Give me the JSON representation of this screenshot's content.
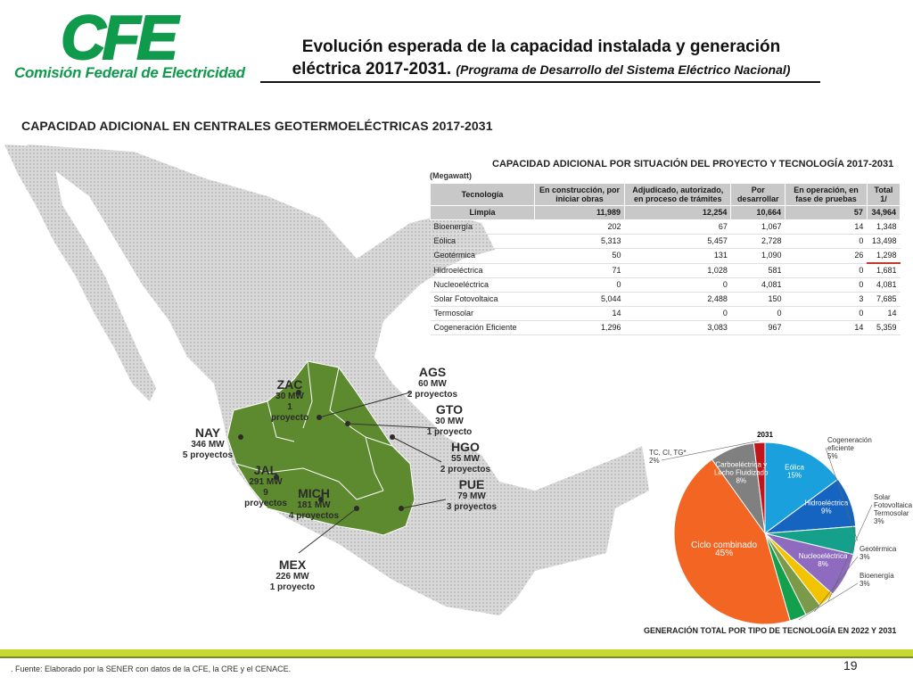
{
  "logo": {
    "cfe": "CFE",
    "subtitle": "Comisión Federal de Electricidad"
  },
  "title": {
    "line1": "Evolución esperada de la capacidad instalada y generación",
    "line2": "eléctrica 2017-2031.",
    "subtitle": "(Programa de Desarrollo del Sistema Eléctrico Nacional)"
  },
  "map": {
    "heading": "CAPACIDAD ADICIONAL EN CENTRALES GEOTERMOELÉCTRICAS 2017-2031",
    "states": [
      {
        "abbr": "ZAC",
        "mw": "30 MW",
        "projects": "1 proyecto"
      },
      {
        "abbr": "AGS",
        "mw": "60 MW",
        "projects": "2 proyectos"
      },
      {
        "abbr": "GTO",
        "mw": "30 MW",
        "projects": "1 proyecto"
      },
      {
        "abbr": "NAY",
        "mw": "346 MW",
        "projects": "5 proyectos"
      },
      {
        "abbr": "HGO",
        "mw": "55 MW",
        "projects": "2 proyectos"
      },
      {
        "abbr": "JAL",
        "mw": "291 MW",
        "projects": "9 proyectos"
      },
      {
        "abbr": "PUE",
        "mw": "79 MW",
        "projects": "3 proyectos"
      },
      {
        "abbr": "MICH",
        "mw": "181 MW",
        "projects": "4 proyectos"
      },
      {
        "abbr": "MEX",
        "mw": "226 MW",
        "projects": "1 proyecto"
      }
    ]
  },
  "table": {
    "title": "CAPACIDAD ADICIONAL POR SITUACIÓN DEL PROYECTO Y TECNOLOGÍA  2017-2031",
    "unit": "(Megawatt)",
    "headers": [
      "Tecnología",
      "En construcción, por iniciar obras",
      "Adjudicado, autorizado, en proceso de trámites",
      "Por desarrollar",
      "En operación, en fase de pruebas",
      "Total 1/"
    ],
    "total_row": [
      "Limpia",
      "11,989",
      "12,254",
      "10,664",
      "57",
      "34,964"
    ],
    "rows": [
      [
        "Bioenergía",
        "202",
        "67",
        "1,067",
        "14",
        "1,348"
      ],
      [
        "Eólica",
        "5,313",
        "5,457",
        "2,728",
        "0",
        "13,498"
      ],
      [
        "Geotérmica",
        "50",
        "131",
        "1,090",
        "26",
        "1,298"
      ],
      [
        "Hidroeléctrica",
        "71",
        "1,028",
        "581",
        "0",
        "1,681"
      ],
      [
        "Nucleoeléctrica",
        "0",
        "0",
        "4,081",
        "0",
        "4,081"
      ],
      [
        "Solar Fotovoltaica",
        "5,044",
        "2,488",
        "150",
        "3",
        "7,685"
      ],
      [
        "Termosolar",
        "14",
        "0",
        "0",
        "0",
        "14"
      ],
      [
        "Cogeneración Eficiente",
        "1,296",
        "3,083",
        "967",
        "14",
        "5,359"
      ]
    ]
  },
  "chart_data": {
    "type": "pie",
    "title": "2031",
    "caption": "GENERACIÓN TOTAL POR TIPO DE TECNOLOGÍA EN 2022 Y 2031",
    "slices": [
      {
        "label": "Eólica",
        "value": 15,
        "pct": "15%",
        "color": "#1aa0dc"
      },
      {
        "label": "Hidroeléctrica",
        "value": 9,
        "pct": "9%",
        "color": "#1565c0"
      },
      {
        "label": "Cogeneración eficiente",
        "value": 5,
        "pct": "5%",
        "color": "#14a08a"
      },
      {
        "label": "Nucleoeléctrica",
        "value": 8,
        "pct": "8%",
        "color": "#8e6bbf"
      },
      {
        "label": "Solar Fotovoltaica y Termosolar",
        "value": 3,
        "pct": "3%",
        "color": "#f2c300"
      },
      {
        "label": "Geotérmica",
        "value": 3,
        "pct": "3%",
        "color": "#7a9a4a"
      },
      {
        "label": "Bioenergía",
        "value": 3,
        "pct": "3%",
        "color": "#12a04c"
      },
      {
        "label": "Ciclo combinado",
        "value": 45,
        "pct": "45%",
        "color": "#f26522"
      },
      {
        "label": "Carboeléctrica y Lecho Fluidizado",
        "value": 8,
        "pct": "8%",
        "color": "#808080"
      },
      {
        "label": "TC, CI, TG*",
        "value": 2,
        "pct": "2%",
        "color": "#c0151b"
      }
    ]
  },
  "footer": {
    "source": ". Fuente: Elaborado por la SENER con datos de la CFE, la CRE y el CENACE.",
    "page": "19"
  },
  "colors": {
    "brand_green": "#0f9a4c",
    "map_green": "#5d8a2e",
    "footer_bar": "#c6d832"
  }
}
